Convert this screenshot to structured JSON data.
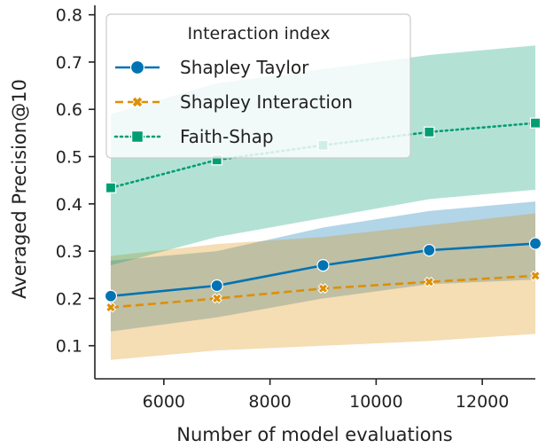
{
  "chart_data": {
    "type": "line",
    "title": "",
    "xlabel": "Number of model evaluations",
    "ylabel": "Averaged Precision@10",
    "xlim": [
      4700,
      13000
    ],
    "ylim": [
      0.03,
      0.82
    ],
    "xticks": [
      6000,
      8000,
      10000,
      12000
    ],
    "xtick_labels": [
      "6000",
      "8000",
      "10000",
      "12000"
    ],
    "yticks": [
      0.1,
      0.2,
      0.3,
      0.4,
      0.5,
      0.6,
      0.7,
      0.8
    ],
    "ytick_labels": [
      "0.1",
      "0.2",
      "0.3",
      "0.4",
      "0.5",
      "0.6",
      "0.7",
      "0.8"
    ],
    "grid": false,
    "legend": {
      "title": "Interaction index",
      "position": "top-left"
    },
    "x": [
      5000,
      7000,
      9000,
      11000,
      13000
    ],
    "series": [
      {
        "name": "Shapley Taylor",
        "values": [
          0.205,
          0.227,
          0.27,
          0.302,
          0.316
        ],
        "band_lower": [
          0.13,
          0.16,
          0.2,
          0.23,
          0.24
        ],
        "band_upper": [
          0.28,
          0.3,
          0.35,
          0.385,
          0.405
        ],
        "color": "#0173b2",
        "marker": "circle",
        "dash": "solid"
      },
      {
        "name": "Shapley Interaction",
        "values": [
          0.181,
          0.2,
          0.221,
          0.235,
          0.248
        ],
        "band_lower": [
          0.07,
          0.09,
          0.1,
          0.11,
          0.125
        ],
        "band_upper": [
          0.29,
          0.315,
          0.33,
          0.355,
          0.38
        ],
        "color": "#de8f05",
        "marker": "x",
        "dash": "dashed"
      },
      {
        "name": "Faith-Shap",
        "values": [
          0.434,
          0.493,
          0.524,
          0.552,
          0.571
        ],
        "band_lower": [
          0.27,
          0.33,
          0.37,
          0.41,
          0.43
        ],
        "band_upper": [
          0.59,
          0.655,
          0.685,
          0.715,
          0.735
        ],
        "color": "#029e73",
        "marker": "square",
        "dash": "dotted"
      }
    ]
  }
}
